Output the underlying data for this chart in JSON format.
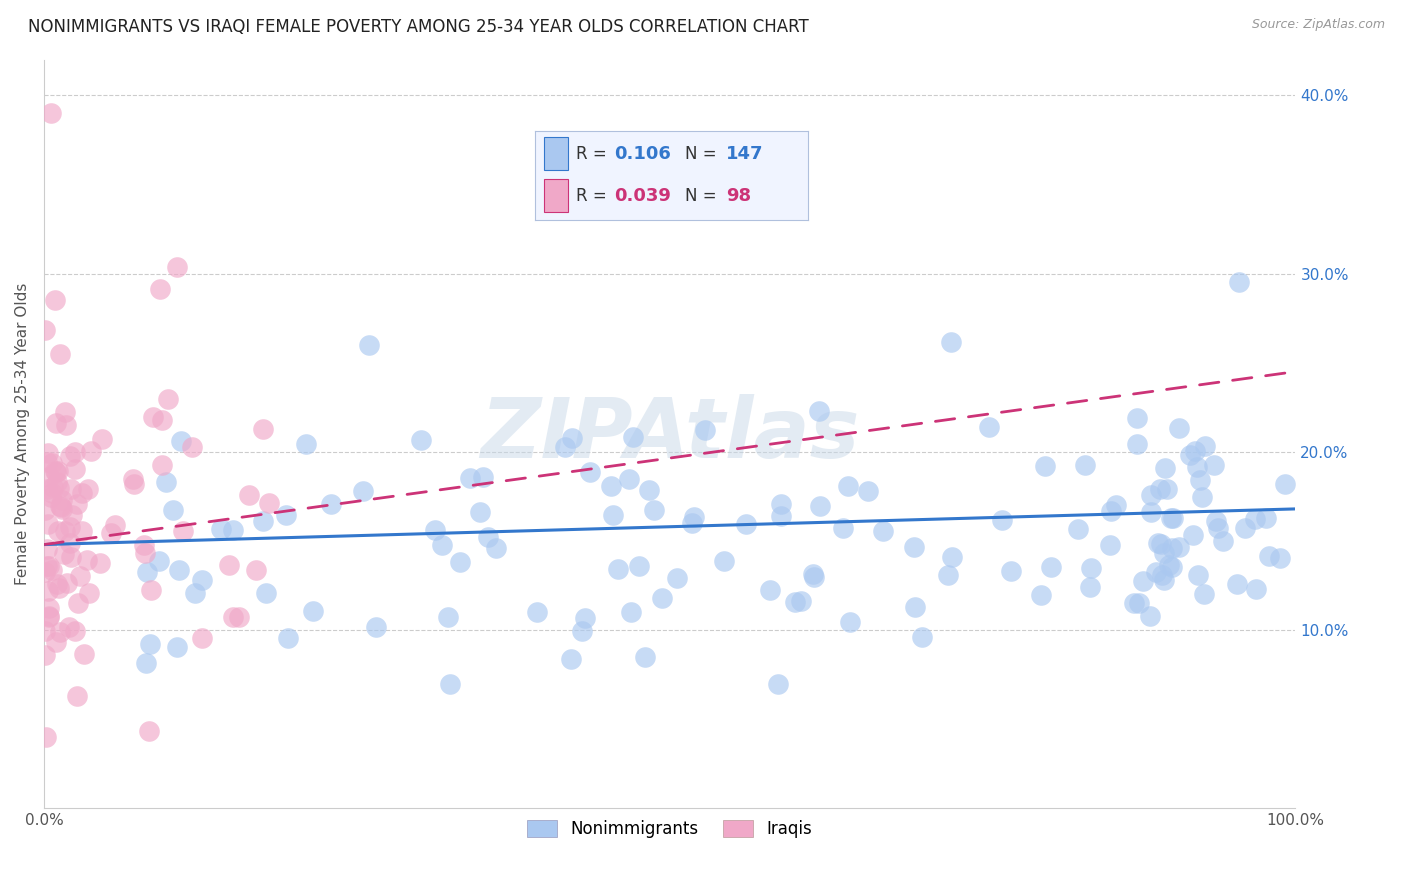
{
  "title": "NONIMMIGRANTS VS IRAQI FEMALE POVERTY AMONG 25-34 YEAR OLDS CORRELATION CHART",
  "source": "Source: ZipAtlas.com",
  "ylabel": "Female Poverty Among 25-34 Year Olds",
  "xlim": [
    0.0,
    1.0
  ],
  "ylim": [
    0.0,
    0.42
  ],
  "xticks": [
    0.0,
    1.0
  ],
  "xticklabels": [
    "0.0%",
    "100.0%"
  ],
  "ytick_right_vals": [
    0.1,
    0.2,
    0.3,
    0.4
  ],
  "ytick_right_labels": [
    "10.0%",
    "20.0%",
    "30.0%",
    "40.0%"
  ],
  "blue_fill": "#aac8f0",
  "pink_fill": "#f0a8c8",
  "blue_line_color": "#3377cc",
  "pink_line_color": "#cc3377",
  "legend_bg": "#f0f4ff",
  "legend_border": "#b0c0dd",
  "watermark_color": "#c8d8e8",
  "R_blue": 0.106,
  "N_blue": 147,
  "R_pink": 0.039,
  "N_pink": 98,
  "blue_trend_start_y": 0.148,
  "blue_trend_end_y": 0.168,
  "pink_trend_start_y": 0.148,
  "pink_trend_end_y": 0.245
}
